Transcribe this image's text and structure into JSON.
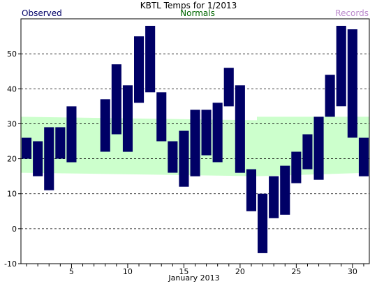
{
  "chart_data": {
    "type": "bar",
    "title": "KBTL Temps for 1/2013",
    "xlabel": "January 2013",
    "ylabel": "",
    "legend": [
      {
        "name": "Observed",
        "color": "#000066"
      },
      {
        "name": "Normals",
        "color": "#006600"
      },
      {
        "name": "Records",
        "color": "#bb88cc"
      }
    ],
    "legend_placement": "top",
    "ylim": [
      -10,
      60
    ],
    "xlim": [
      0.5,
      31.5
    ],
    "y_ticks": [
      -10,
      0,
      10,
      20,
      30,
      40,
      50
    ],
    "x_tick_labels": [
      5,
      10,
      15,
      20,
      25,
      30
    ],
    "grid": "horizontal dashed",
    "colors": {
      "observed": "#000066",
      "normals_band": "#ccffcc"
    },
    "normals": {
      "days": [
        1,
        21,
        22,
        31
      ],
      "low": [
        16,
        15,
        15,
        16
      ],
      "high": [
        32,
        31,
        32,
        32
      ]
    },
    "observed": {
      "name": "Observed",
      "days": [
        1,
        2,
        3,
        4,
        5,
        6,
        7,
        8,
        9,
        10,
        11,
        12,
        13,
        14,
        15,
        16,
        17,
        18,
        19,
        20,
        21,
        22,
        23,
        24,
        25,
        26,
        27,
        28,
        29,
        30,
        31
      ],
      "high": [
        26,
        25,
        29,
        29,
        35,
        null,
        null,
        37,
        47,
        41,
        55,
        58,
        39,
        25,
        28,
        34,
        34,
        36,
        46,
        41,
        17,
        10,
        15,
        18,
        22,
        27,
        32,
        44,
        58,
        57,
        26
      ],
      "low": [
        20,
        15,
        11,
        20,
        19,
        null,
        null,
        22,
        27,
        22,
        36,
        39,
        25,
        16,
        12,
        15,
        21,
        19,
        35,
        16,
        5,
        -7,
        3,
        4,
        13,
        17,
        14,
        32,
        35,
        26,
        15
      ]
    }
  }
}
